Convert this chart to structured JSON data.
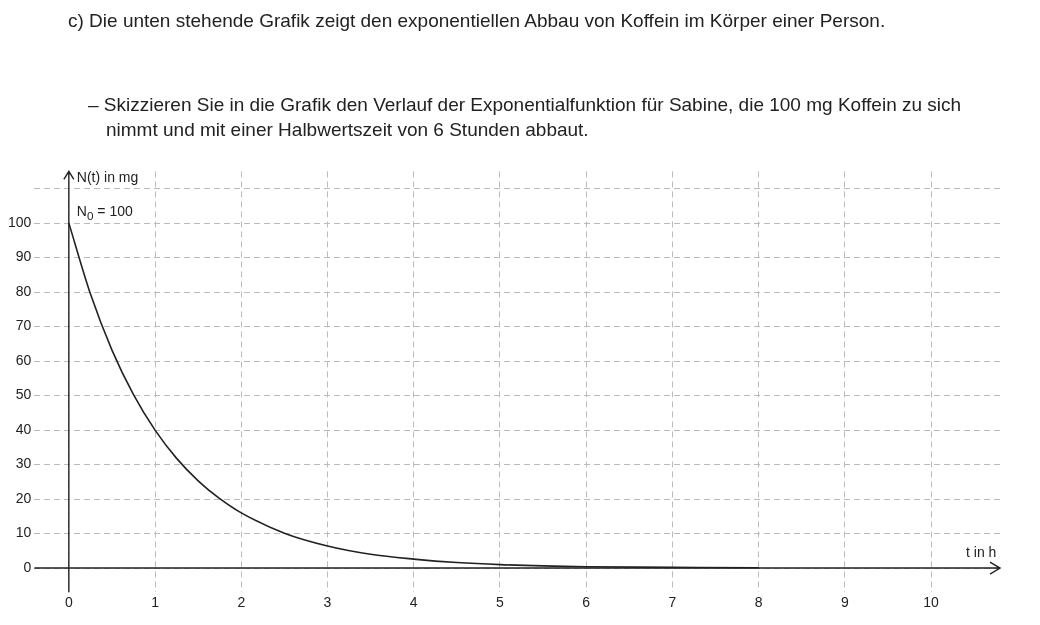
{
  "chart_data": {
    "type": "line",
    "title": "c) Die unten stehende Grafik zeigt den exponentiellen Abbau von Koffein im Körper einer Person.",
    "subtitle": "– Skizzieren Sie in die Grafik den Verlauf der Exponentialfunktion für Sabine, die 100 mg Koffein zu sich nimmt und mit einer Halbwertszeit von 6 Stunden abbaut.",
    "xlabel": "t in h",
    "ylabel": "N(t) in mg",
    "annotations": [
      {
        "text": "N$_{0}$ = 100",
        "x": 0,
        "y": 100
      }
    ],
    "x": [
      0,
      0.25,
      0.5,
      0.75,
      1,
      1.25,
      1.5,
      1.75,
      2,
      2.5,
      3,
      3.5,
      4,
      4.5,
      5,
      6,
      7,
      8
    ],
    "series": [
      {
        "color": "#222222",
        "values": [
          100,
          79.5,
          63.2,
          50.3,
          40,
          31.8,
          25.3,
          20.1,
          16,
          10.1,
          6.4,
          4.0,
          2.6,
          1.6,
          1.0,
          0.4,
          0.2,
          0.1
        ]
      }
    ],
    "xlim": [
      -0.4,
      10.8
    ],
    "ylim": [
      -7,
      115
    ],
    "xticks": [
      0,
      1,
      2,
      3,
      4,
      5,
      6,
      7,
      8,
      9,
      10
    ],
    "yticks": [
      0,
      10,
      20,
      30,
      40,
      50,
      60,
      70,
      80,
      90,
      100,
      {
        "value": 110,
        "label": null
      }
    ],
    "grid": true,
    "marker": "none",
    "line_style": "solid"
  }
}
